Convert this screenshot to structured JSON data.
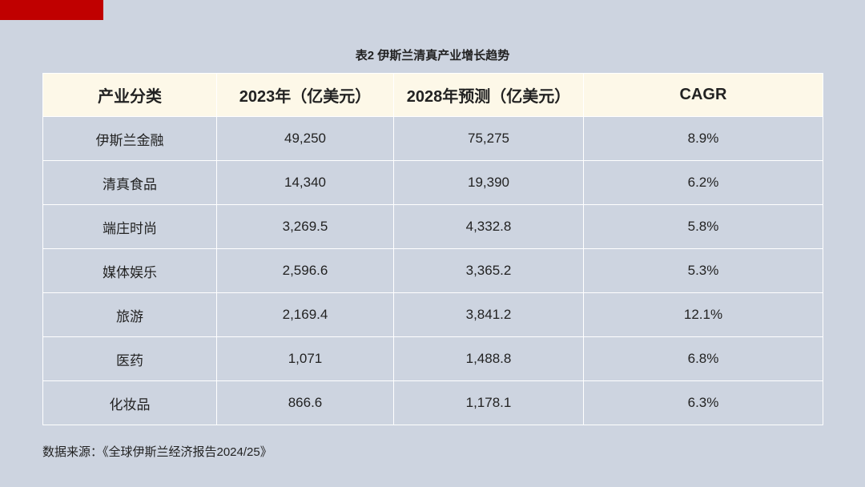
{
  "title": "表2 伊斯兰清真产业增长趋势",
  "table": {
    "header": [
      "产业分类",
      "2023年（亿美元）",
      "2028年预测（亿美元）",
      "CAGR"
    ],
    "rows": [
      [
        "伊斯兰金融",
        "49,250",
        "75,275",
        "8.9%"
      ],
      [
        "清真食品",
        "14,340",
        "19,390",
        "6.2%"
      ],
      [
        "端庄时尚",
        "3,269.5",
        "4,332.8",
        "5.8%"
      ],
      [
        "媒体娱乐",
        "2,596.6",
        "3,365.2",
        "5.3%"
      ],
      [
        "旅游",
        "2,169.4",
        "3,841.2",
        "12.1%"
      ],
      [
        "医药",
        "1,071",
        "1,488.8",
        "6.8%"
      ],
      [
        "化妆品",
        "866.6",
        "1,178.1",
        "6.3%"
      ]
    ]
  },
  "source": "数据来源：《全球伊斯兰经济报告2024/25》"
}
